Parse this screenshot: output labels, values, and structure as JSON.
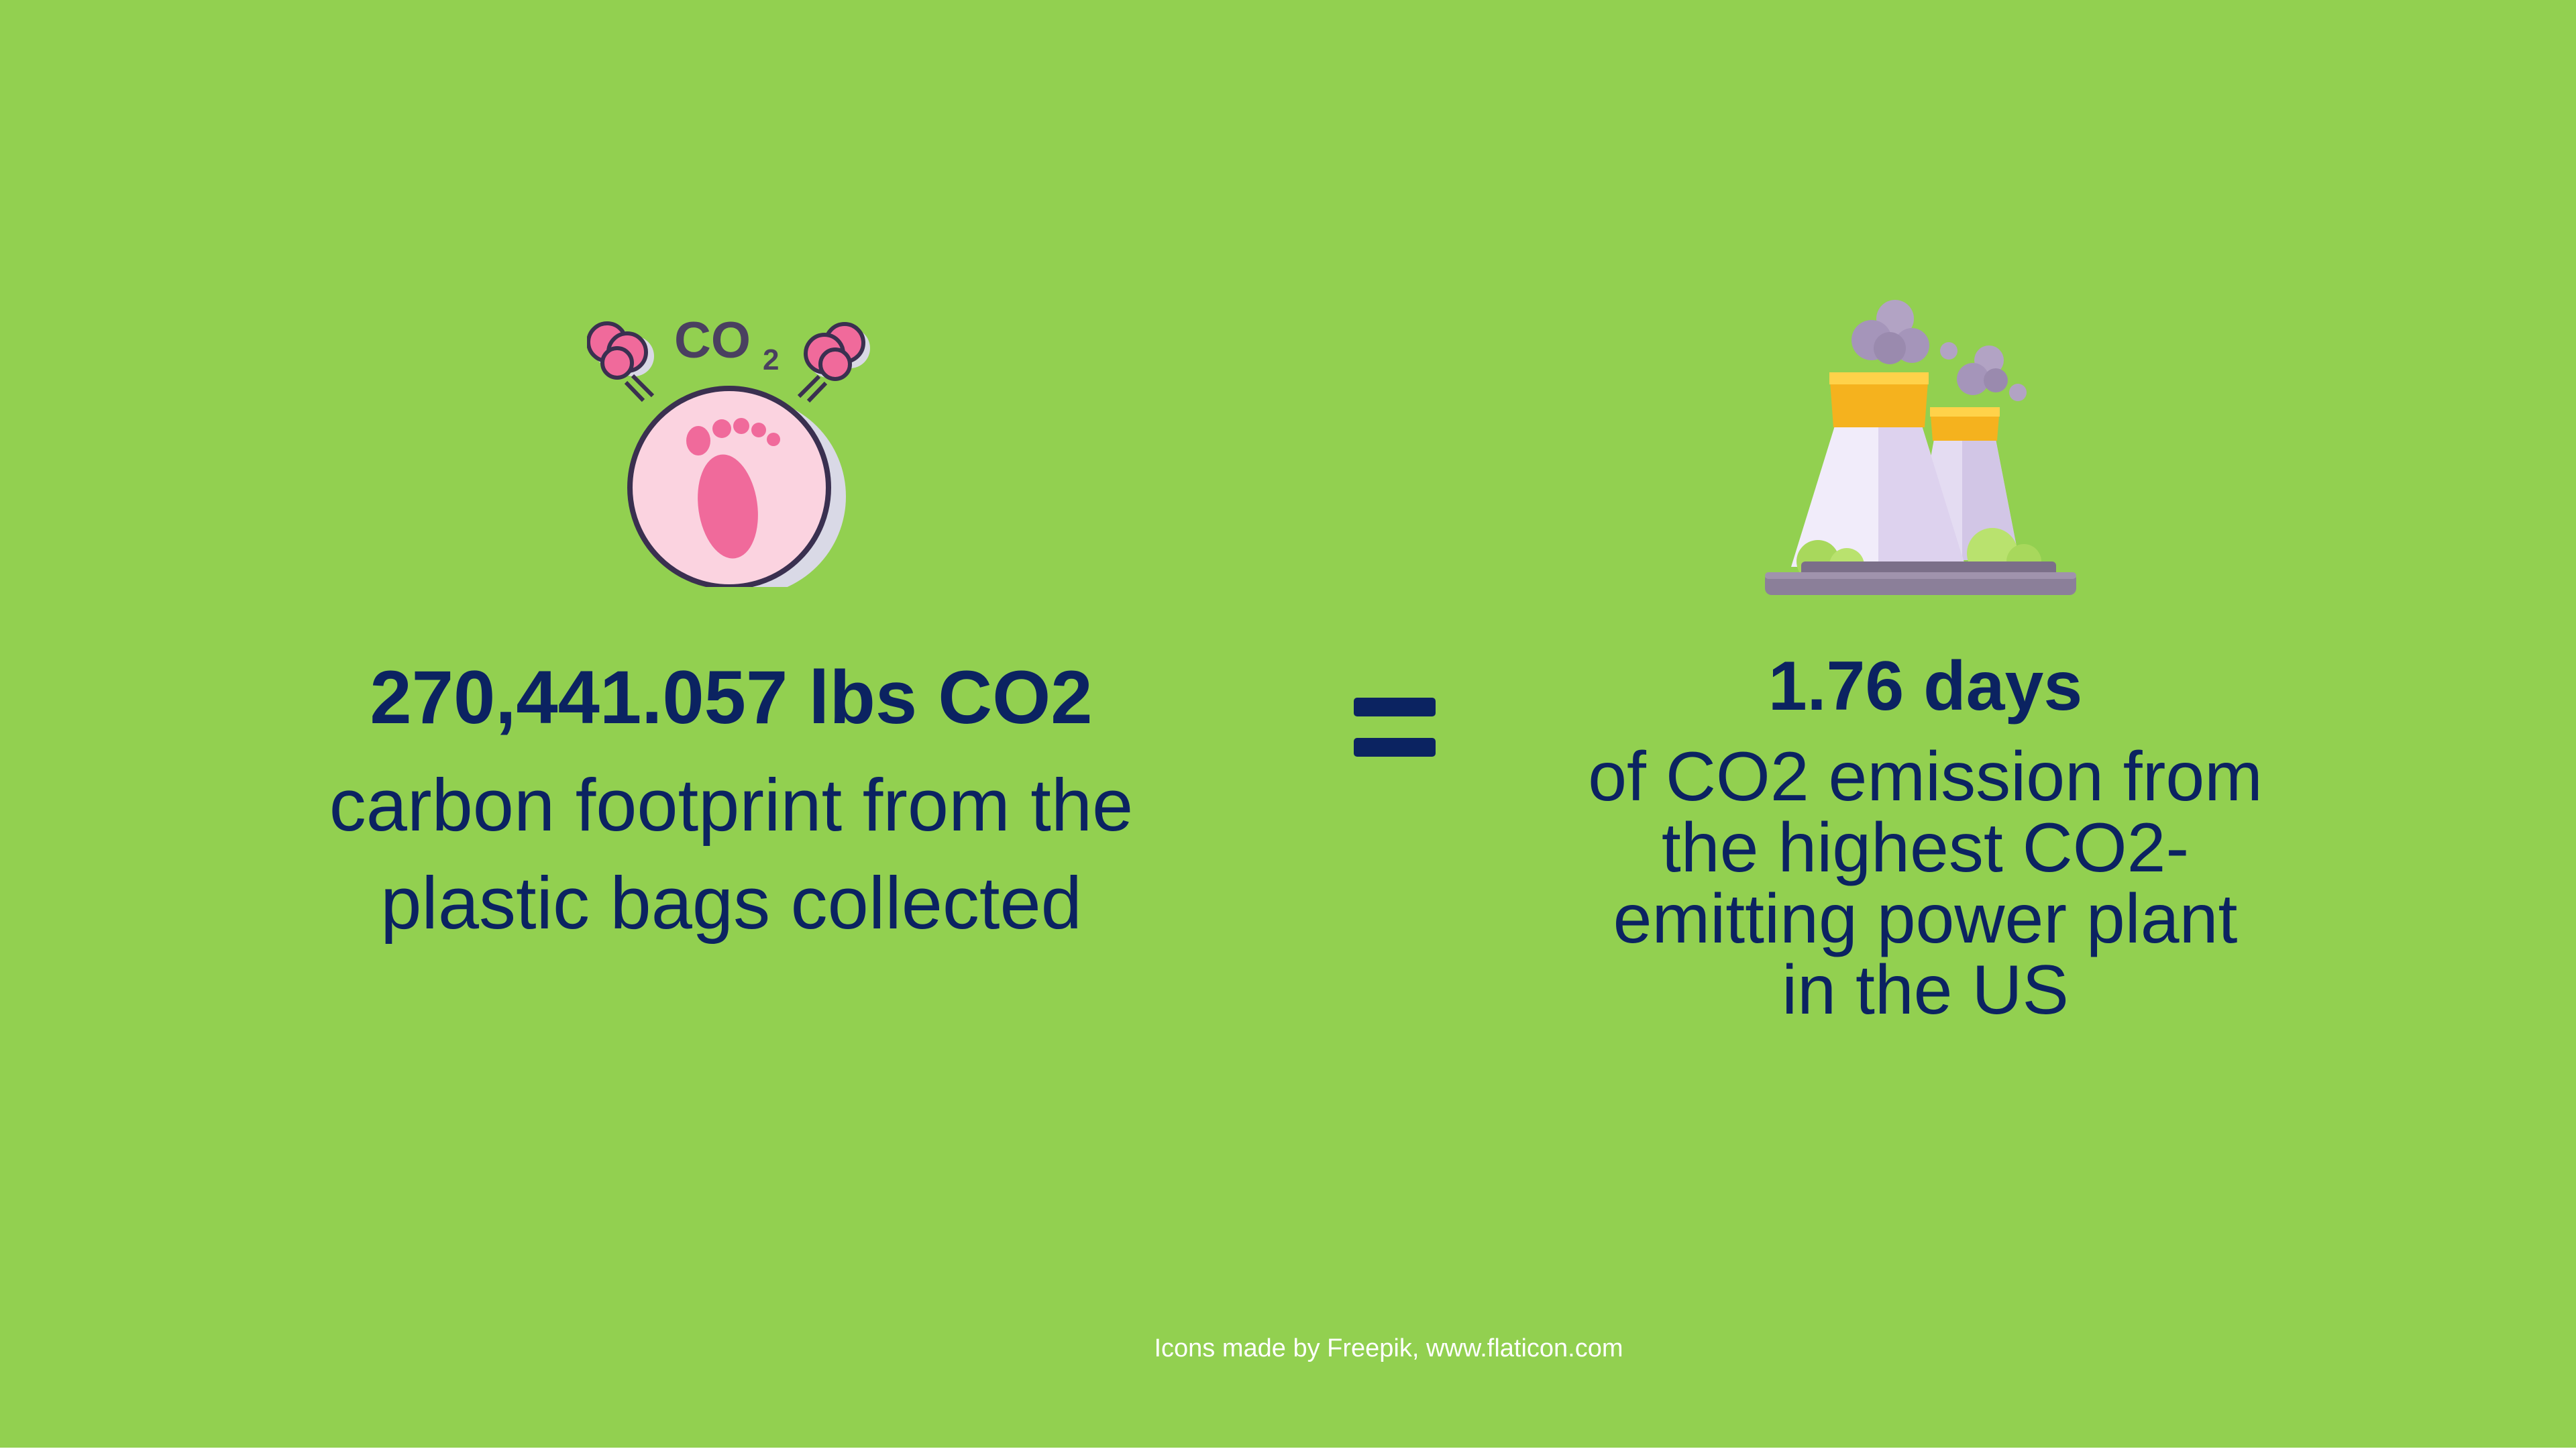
{
  "colors": {
    "background": "#92d050",
    "text": "#0b2361",
    "credit": "#ffffff"
  },
  "icons": {
    "left": "carbon-footprint-icon",
    "right": "power-plant-icon",
    "equals": "equals-icon"
  },
  "left": {
    "icon_label_main": "CO",
    "icon_label_sub": "2",
    "value": "270,441.057 lbs CO2",
    "description": "carbon footprint from the\nplastic bags collected"
  },
  "right": {
    "value": "1.76 days",
    "description": "of CO2 emission from\nthe highest CO2-\nemitting power plant\nin the US"
  },
  "credit": "Icons made by Freepik, www.flaticon.com"
}
